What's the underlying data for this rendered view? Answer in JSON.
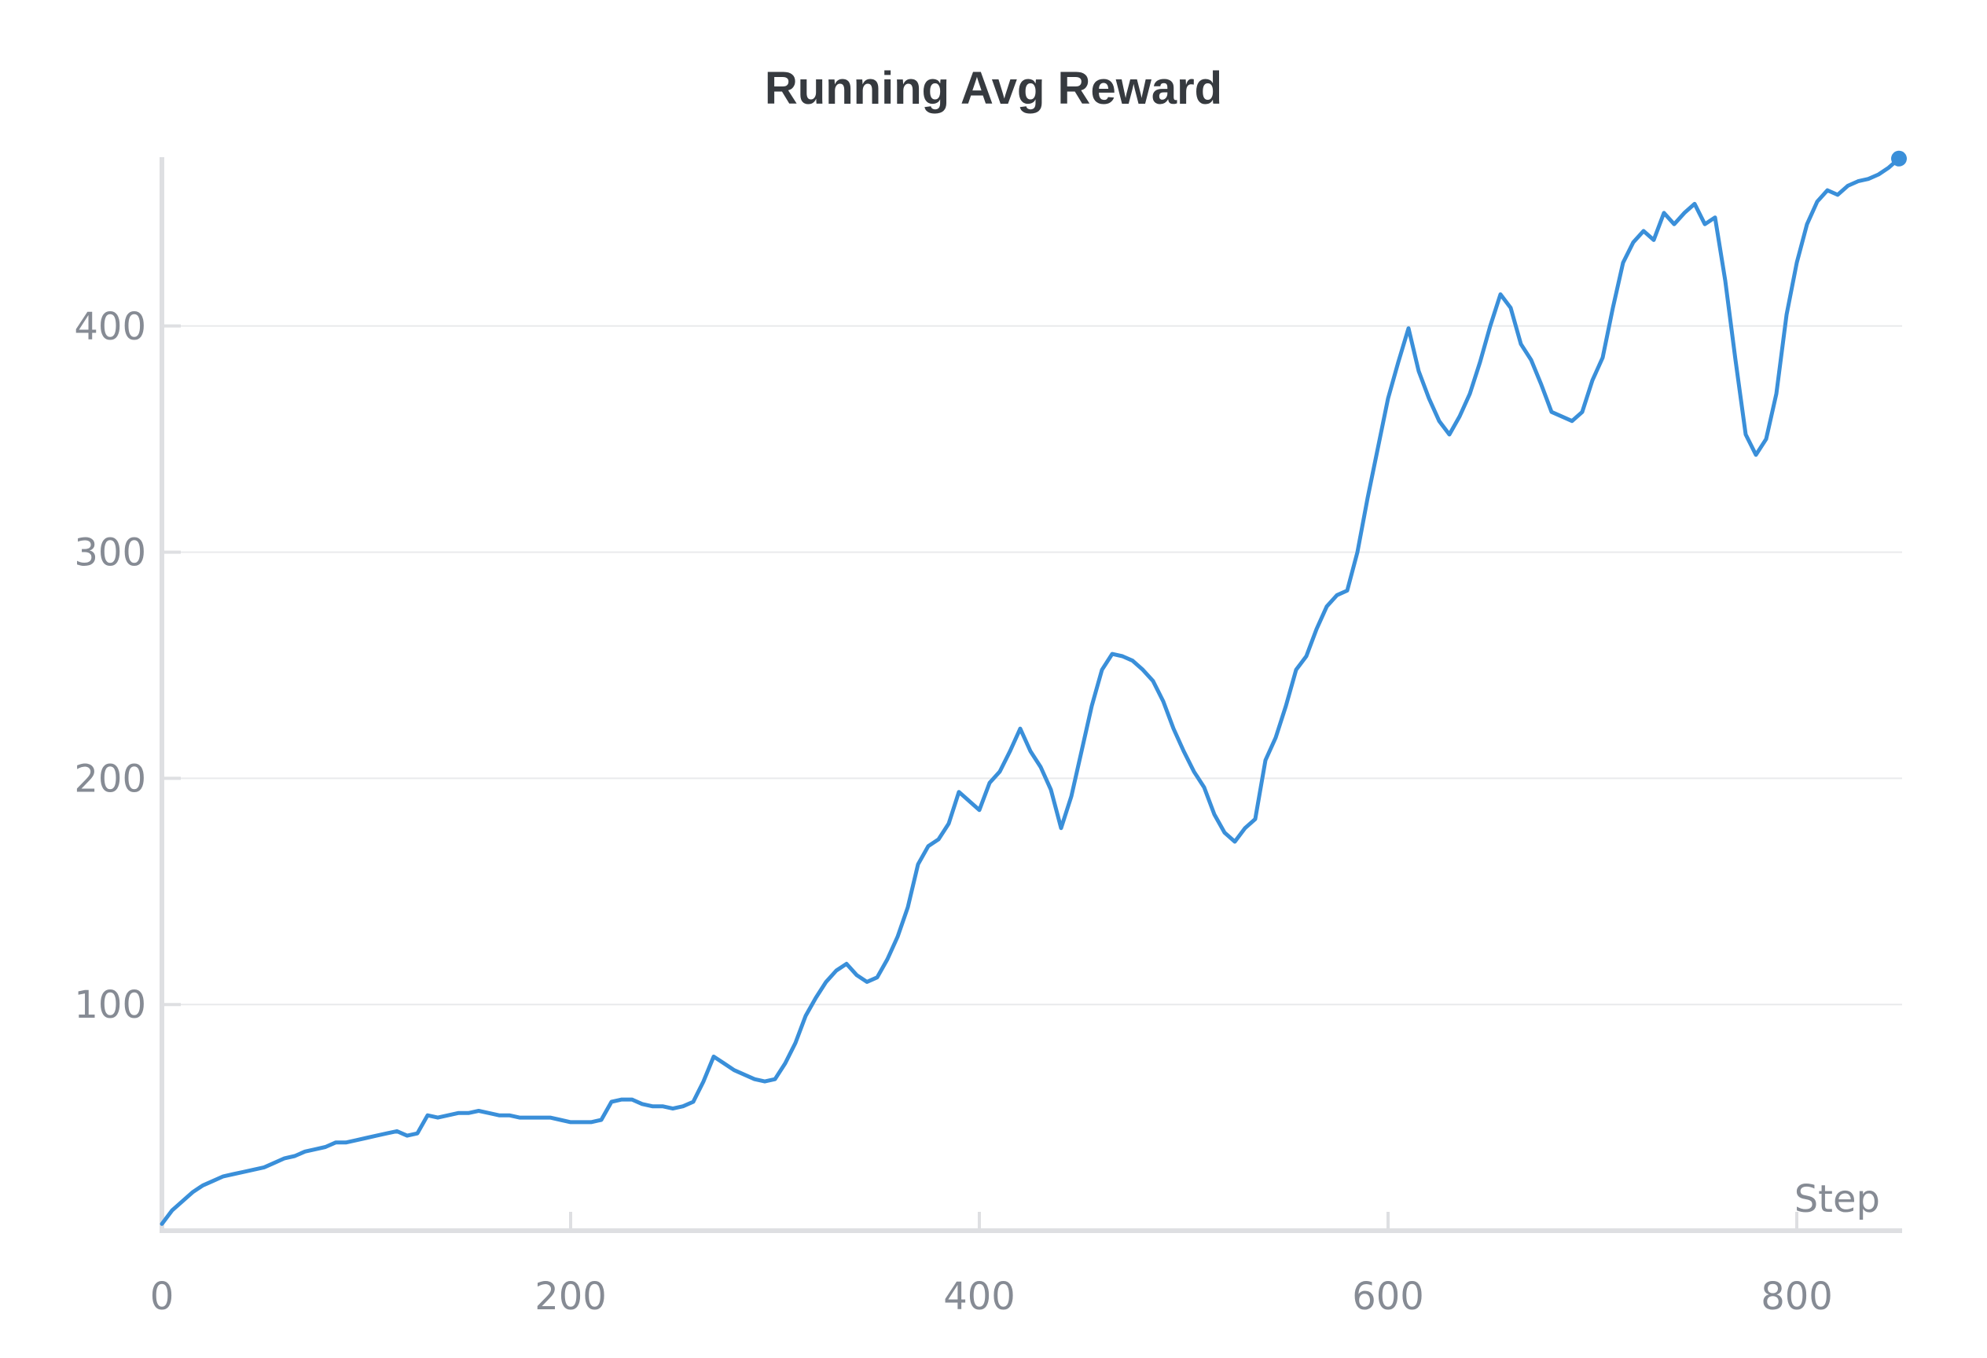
{
  "chart_data": {
    "type": "line",
    "title": "Running Avg Reward",
    "xlabel": "Step",
    "ylabel": "",
    "xlim": [
      0,
      850
    ],
    "ylim": [
      0,
      475
    ],
    "x_ticks": [
      0,
      200,
      400,
      600,
      800
    ],
    "y_ticks": [
      100,
      200,
      300,
      400
    ],
    "grid": "horizontal",
    "line_color": "#3a8fd9",
    "series": [
      {
        "points": [
          [
            0,
            3
          ],
          [
            5,
            9
          ],
          [
            10,
            13
          ],
          [
            15,
            17
          ],
          [
            20,
            20
          ],
          [
            25,
            22
          ],
          [
            30,
            24
          ],
          [
            35,
            25
          ],
          [
            40,
            26
          ],
          [
            45,
            27
          ],
          [
            50,
            28
          ],
          [
            55,
            30
          ],
          [
            60,
            32
          ],
          [
            65,
            33
          ],
          [
            70,
            35
          ],
          [
            75,
            36
          ],
          [
            80,
            37
          ],
          [
            85,
            39
          ],
          [
            90,
            39
          ],
          [
            95,
            40
          ],
          [
            100,
            41
          ],
          [
            105,
            42
          ],
          [
            110,
            43
          ],
          [
            115,
            44
          ],
          [
            120,
            42
          ],
          [
            125,
            43
          ],
          [
            130,
            51
          ],
          [
            135,
            50
          ],
          [
            140,
            51
          ],
          [
            145,
            52
          ],
          [
            150,
            52
          ],
          [
            155,
            53
          ],
          [
            160,
            52
          ],
          [
            165,
            51
          ],
          [
            170,
            51
          ],
          [
            175,
            50
          ],
          [
            180,
            50
          ],
          [
            185,
            50
          ],
          [
            190,
            50
          ],
          [
            195,
            49
          ],
          [
            200,
            48
          ],
          [
            205,
            48
          ],
          [
            210,
            48
          ],
          [
            215,
            49
          ],
          [
            220,
            57
          ],
          [
            225,
            58
          ],
          [
            230,
            58
          ],
          [
            235,
            56
          ],
          [
            240,
            55
          ],
          [
            245,
            55
          ],
          [
            250,
            54
          ],
          [
            255,
            55
          ],
          [
            260,
            57
          ],
          [
            265,
            66
          ],
          [
            270,
            77
          ],
          [
            275,
            74
          ],
          [
            280,
            71
          ],
          [
            285,
            69
          ],
          [
            290,
            67
          ],
          [
            295,
            66
          ],
          [
            300,
            67
          ],
          [
            305,
            74
          ],
          [
            310,
            83
          ],
          [
            315,
            95
          ],
          [
            320,
            103
          ],
          [
            325,
            110
          ],
          [
            330,
            115
          ],
          [
            335,
            118
          ],
          [
            340,
            113
          ],
          [
            345,
            110
          ],
          [
            350,
            112
          ],
          [
            355,
            120
          ],
          [
            360,
            130
          ],
          [
            365,
            143
          ],
          [
            370,
            162
          ],
          [
            375,
            170
          ],
          [
            380,
            173
          ],
          [
            385,
            180
          ],
          [
            390,
            194
          ],
          [
            395,
            190
          ],
          [
            400,
            186
          ],
          [
            405,
            198
          ],
          [
            410,
            203
          ],
          [
            415,
            212
          ],
          [
            420,
            222
          ],
          [
            425,
            212
          ],
          [
            430,
            205
          ],
          [
            435,
            195
          ],
          [
            440,
            178
          ],
          [
            445,
            192
          ],
          [
            450,
            212
          ],
          [
            455,
            232
          ],
          [
            460,
            248
          ],
          [
            465,
            255
          ],
          [
            470,
            254
          ],
          [
            475,
            252
          ],
          [
            480,
            248
          ],
          [
            485,
            243
          ],
          [
            490,
            234
          ],
          [
            495,
            222
          ],
          [
            500,
            212
          ],
          [
            505,
            203
          ],
          [
            510,
            196
          ],
          [
            515,
            184
          ],
          [
            520,
            176
          ],
          [
            525,
            172
          ],
          [
            530,
            178
          ],
          [
            535,
            182
          ],
          [
            540,
            208
          ],
          [
            545,
            218
          ],
          [
            550,
            232
          ],
          [
            555,
            248
          ],
          [
            560,
            254
          ],
          [
            565,
            266
          ],
          [
            570,
            276
          ],
          [
            575,
            281
          ],
          [
            580,
            283
          ],
          [
            585,
            300
          ],
          [
            590,
            324
          ],
          [
            595,
            346
          ],
          [
            600,
            368
          ],
          [
            605,
            384
          ],
          [
            610,
            399
          ],
          [
            615,
            380
          ],
          [
            620,
            368
          ],
          [
            625,
            358
          ],
          [
            630,
            352
          ],
          [
            635,
            360
          ],
          [
            640,
            370
          ],
          [
            645,
            384
          ],
          [
            650,
            400
          ],
          [
            655,
            414
          ],
          [
            660,
            408
          ],
          [
            665,
            392
          ],
          [
            670,
            385
          ],
          [
            675,
            374
          ],
          [
            680,
            362
          ],
          [
            685,
            360
          ],
          [
            690,
            358
          ],
          [
            695,
            362
          ],
          [
            700,
            376
          ],
          [
            705,
            386
          ],
          [
            710,
            408
          ],
          [
            715,
            428
          ],
          [
            720,
            437
          ],
          [
            725,
            442
          ],
          [
            730,
            438
          ],
          [
            735,
            450
          ],
          [
            740,
            445
          ],
          [
            745,
            450
          ],
          [
            750,
            454
          ],
          [
            755,
            445
          ],
          [
            760,
            448
          ],
          [
            765,
            420
          ],
          [
            770,
            385
          ],
          [
            775,
            352
          ],
          [
            780,
            343
          ],
          [
            785,
            350
          ],
          [
            790,
            370
          ],
          [
            795,
            405
          ],
          [
            800,
            428
          ],
          [
            805,
            445
          ],
          [
            810,
            455
          ],
          [
            815,
            460
          ],
          [
            820,
            458
          ],
          [
            825,
            462
          ],
          [
            830,
            464
          ],
          [
            835,
            465
          ],
          [
            840,
            467
          ],
          [
            845,
            470
          ],
          [
            850,
            474
          ]
        ]
      }
    ]
  }
}
